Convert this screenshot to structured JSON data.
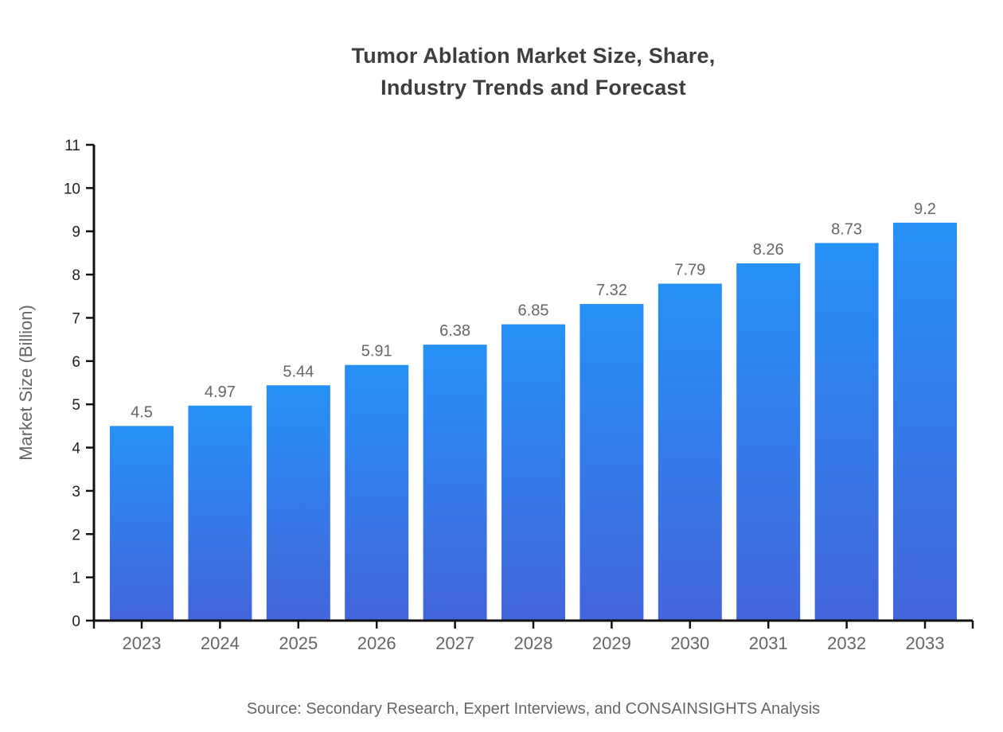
{
  "title": {
    "line1": "Tumor Ablation Market Size, Share,",
    "line2": "Industry Trends and Forecast"
  },
  "source": "Source: Secondary Research, Expert Interviews, and CONSAINSIGHTS Analysis",
  "chart_data": {
    "type": "bar",
    "title": "Tumor Ablation Market Size, Share, Industry Trends and Forecast",
    "categories": [
      "2023",
      "2024",
      "2025",
      "2026",
      "2027",
      "2028",
      "2029",
      "2030",
      "2031",
      "2032",
      "2033"
    ],
    "values": [
      4.5,
      4.97,
      5.44,
      5.91,
      6.38,
      6.85,
      7.32,
      7.79,
      8.26,
      8.73,
      9.2
    ],
    "xlabel": "",
    "ylabel": "Market Size (Billion)",
    "ylim": [
      0,
      11
    ],
    "ytick_step": 1,
    "grid": false,
    "legend": false,
    "colors": {
      "bar_gradient_top": "#2691F6",
      "bar_gradient_bottom": "#4365DC",
      "axis": "#111111",
      "ytick_label": "#1f1f1f",
      "xtick_label": "#666666",
      "value_label": "#666666",
      "title": "#3e3e3e",
      "source": "#666666"
    }
  }
}
